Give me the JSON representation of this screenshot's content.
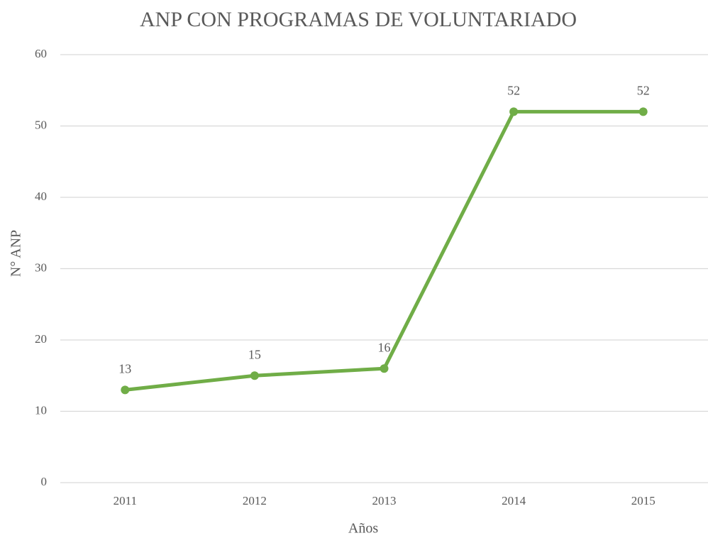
{
  "chart_data": {
    "type": "line",
    "title": "ANP CON PROGRAMAS DE VOLUNTARIADO",
    "x_label": "Años",
    "y_label": "N° ANP",
    "categories": [
      "2011",
      "2012",
      "2013",
      "2014",
      "2015"
    ],
    "series": [
      {
        "name": "N° ANP",
        "color": "#70ad47",
        "values": [
          13,
          15,
          16,
          52,
          52
        ]
      }
    ],
    "ylim": [
      0,
      60
    ],
    "yticks": [
      0,
      10,
      20,
      30,
      40,
      50,
      60
    ],
    "grid": true
  }
}
